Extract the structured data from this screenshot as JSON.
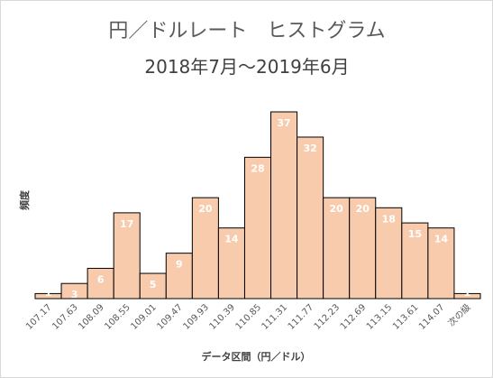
{
  "chart_data": {
    "type": "bar",
    "title": "円／ドルレート　ヒストグラム",
    "subtitle": "2018年7月～2019年6月",
    "xlabel": "データ区間（円／ドル）",
    "ylabel": "頻度",
    "categories": [
      "107.17",
      "107.63",
      "108.09",
      "108.55",
      "109.01",
      "109.47",
      "109.93",
      "110.39",
      "110.85",
      "111.31",
      "111.77",
      "112.23",
      "112.69",
      "113.15",
      "113.61",
      "114.07",
      "次の級"
    ],
    "values": [
      1,
      3,
      6,
      17,
      5,
      9,
      20,
      14,
      28,
      37,
      32,
      20,
      20,
      18,
      15,
      14,
      1
    ],
    "ylim": [
      0,
      37
    ],
    "grid": false,
    "legend": "none",
    "colors": {
      "bar_fill": "#f8cbad",
      "bar_edge": "#000000",
      "data_label": "#ffffff"
    }
  }
}
